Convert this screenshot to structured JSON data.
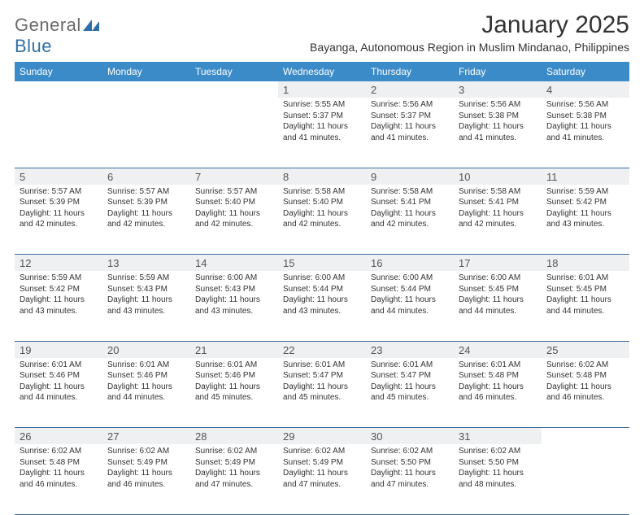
{
  "brand": {
    "name_a": "General",
    "name_b": "Blue"
  },
  "title": "January 2025",
  "subtitle": "Bayanga, Autonomous Region in Muslim Mindanao, Philippines",
  "colors": {
    "header_bg": "#3b8bc9",
    "header_text": "#ffffff",
    "daynum_bg": "#eef0f1",
    "row_border": "#3b6a9a",
    "brand_gray": "#6a6a6a",
    "brand_blue": "#2f6fa8",
    "text": "#333333"
  },
  "weekdays": [
    "Sunday",
    "Monday",
    "Tuesday",
    "Wednesday",
    "Thursday",
    "Friday",
    "Saturday"
  ],
  "weeks": [
    [
      null,
      null,
      null,
      {
        "n": "1",
        "sunrise": "5:55 AM",
        "sunset": "5:37 PM",
        "daylight": "11 hours and 41 minutes."
      },
      {
        "n": "2",
        "sunrise": "5:56 AM",
        "sunset": "5:37 PM",
        "daylight": "11 hours and 41 minutes."
      },
      {
        "n": "3",
        "sunrise": "5:56 AM",
        "sunset": "5:38 PM",
        "daylight": "11 hours and 41 minutes."
      },
      {
        "n": "4",
        "sunrise": "5:56 AM",
        "sunset": "5:38 PM",
        "daylight": "11 hours and 41 minutes."
      }
    ],
    [
      {
        "n": "5",
        "sunrise": "5:57 AM",
        "sunset": "5:39 PM",
        "daylight": "11 hours and 42 minutes."
      },
      {
        "n": "6",
        "sunrise": "5:57 AM",
        "sunset": "5:39 PM",
        "daylight": "11 hours and 42 minutes."
      },
      {
        "n": "7",
        "sunrise": "5:57 AM",
        "sunset": "5:40 PM",
        "daylight": "11 hours and 42 minutes."
      },
      {
        "n": "8",
        "sunrise": "5:58 AM",
        "sunset": "5:40 PM",
        "daylight": "11 hours and 42 minutes."
      },
      {
        "n": "9",
        "sunrise": "5:58 AM",
        "sunset": "5:41 PM",
        "daylight": "11 hours and 42 minutes."
      },
      {
        "n": "10",
        "sunrise": "5:58 AM",
        "sunset": "5:41 PM",
        "daylight": "11 hours and 42 minutes."
      },
      {
        "n": "11",
        "sunrise": "5:59 AM",
        "sunset": "5:42 PM",
        "daylight": "11 hours and 43 minutes."
      }
    ],
    [
      {
        "n": "12",
        "sunrise": "5:59 AM",
        "sunset": "5:42 PM",
        "daylight": "11 hours and 43 minutes."
      },
      {
        "n": "13",
        "sunrise": "5:59 AM",
        "sunset": "5:43 PM",
        "daylight": "11 hours and 43 minutes."
      },
      {
        "n": "14",
        "sunrise": "6:00 AM",
        "sunset": "5:43 PM",
        "daylight": "11 hours and 43 minutes."
      },
      {
        "n": "15",
        "sunrise": "6:00 AM",
        "sunset": "5:44 PM",
        "daylight": "11 hours and 43 minutes."
      },
      {
        "n": "16",
        "sunrise": "6:00 AM",
        "sunset": "5:44 PM",
        "daylight": "11 hours and 44 minutes."
      },
      {
        "n": "17",
        "sunrise": "6:00 AM",
        "sunset": "5:45 PM",
        "daylight": "11 hours and 44 minutes."
      },
      {
        "n": "18",
        "sunrise": "6:01 AM",
        "sunset": "5:45 PM",
        "daylight": "11 hours and 44 minutes."
      }
    ],
    [
      {
        "n": "19",
        "sunrise": "6:01 AM",
        "sunset": "5:46 PM",
        "daylight": "11 hours and 44 minutes."
      },
      {
        "n": "20",
        "sunrise": "6:01 AM",
        "sunset": "5:46 PM",
        "daylight": "11 hours and 44 minutes."
      },
      {
        "n": "21",
        "sunrise": "6:01 AM",
        "sunset": "5:46 PM",
        "daylight": "11 hours and 45 minutes."
      },
      {
        "n": "22",
        "sunrise": "6:01 AM",
        "sunset": "5:47 PM",
        "daylight": "11 hours and 45 minutes."
      },
      {
        "n": "23",
        "sunrise": "6:01 AM",
        "sunset": "5:47 PM",
        "daylight": "11 hours and 45 minutes."
      },
      {
        "n": "24",
        "sunrise": "6:01 AM",
        "sunset": "5:48 PM",
        "daylight": "11 hours and 46 minutes."
      },
      {
        "n": "25",
        "sunrise": "6:02 AM",
        "sunset": "5:48 PM",
        "daylight": "11 hours and 46 minutes."
      }
    ],
    [
      {
        "n": "26",
        "sunrise": "6:02 AM",
        "sunset": "5:48 PM",
        "daylight": "11 hours and 46 minutes."
      },
      {
        "n": "27",
        "sunrise": "6:02 AM",
        "sunset": "5:49 PM",
        "daylight": "11 hours and 46 minutes."
      },
      {
        "n": "28",
        "sunrise": "6:02 AM",
        "sunset": "5:49 PM",
        "daylight": "11 hours and 47 minutes."
      },
      {
        "n": "29",
        "sunrise": "6:02 AM",
        "sunset": "5:49 PM",
        "daylight": "11 hours and 47 minutes."
      },
      {
        "n": "30",
        "sunrise": "6:02 AM",
        "sunset": "5:50 PM",
        "daylight": "11 hours and 47 minutes."
      },
      {
        "n": "31",
        "sunrise": "6:02 AM",
        "sunset": "5:50 PM",
        "daylight": "11 hours and 48 minutes."
      },
      null
    ]
  ],
  "labels": {
    "sunrise": "Sunrise:",
    "sunset": "Sunset:",
    "daylight": "Daylight:"
  }
}
